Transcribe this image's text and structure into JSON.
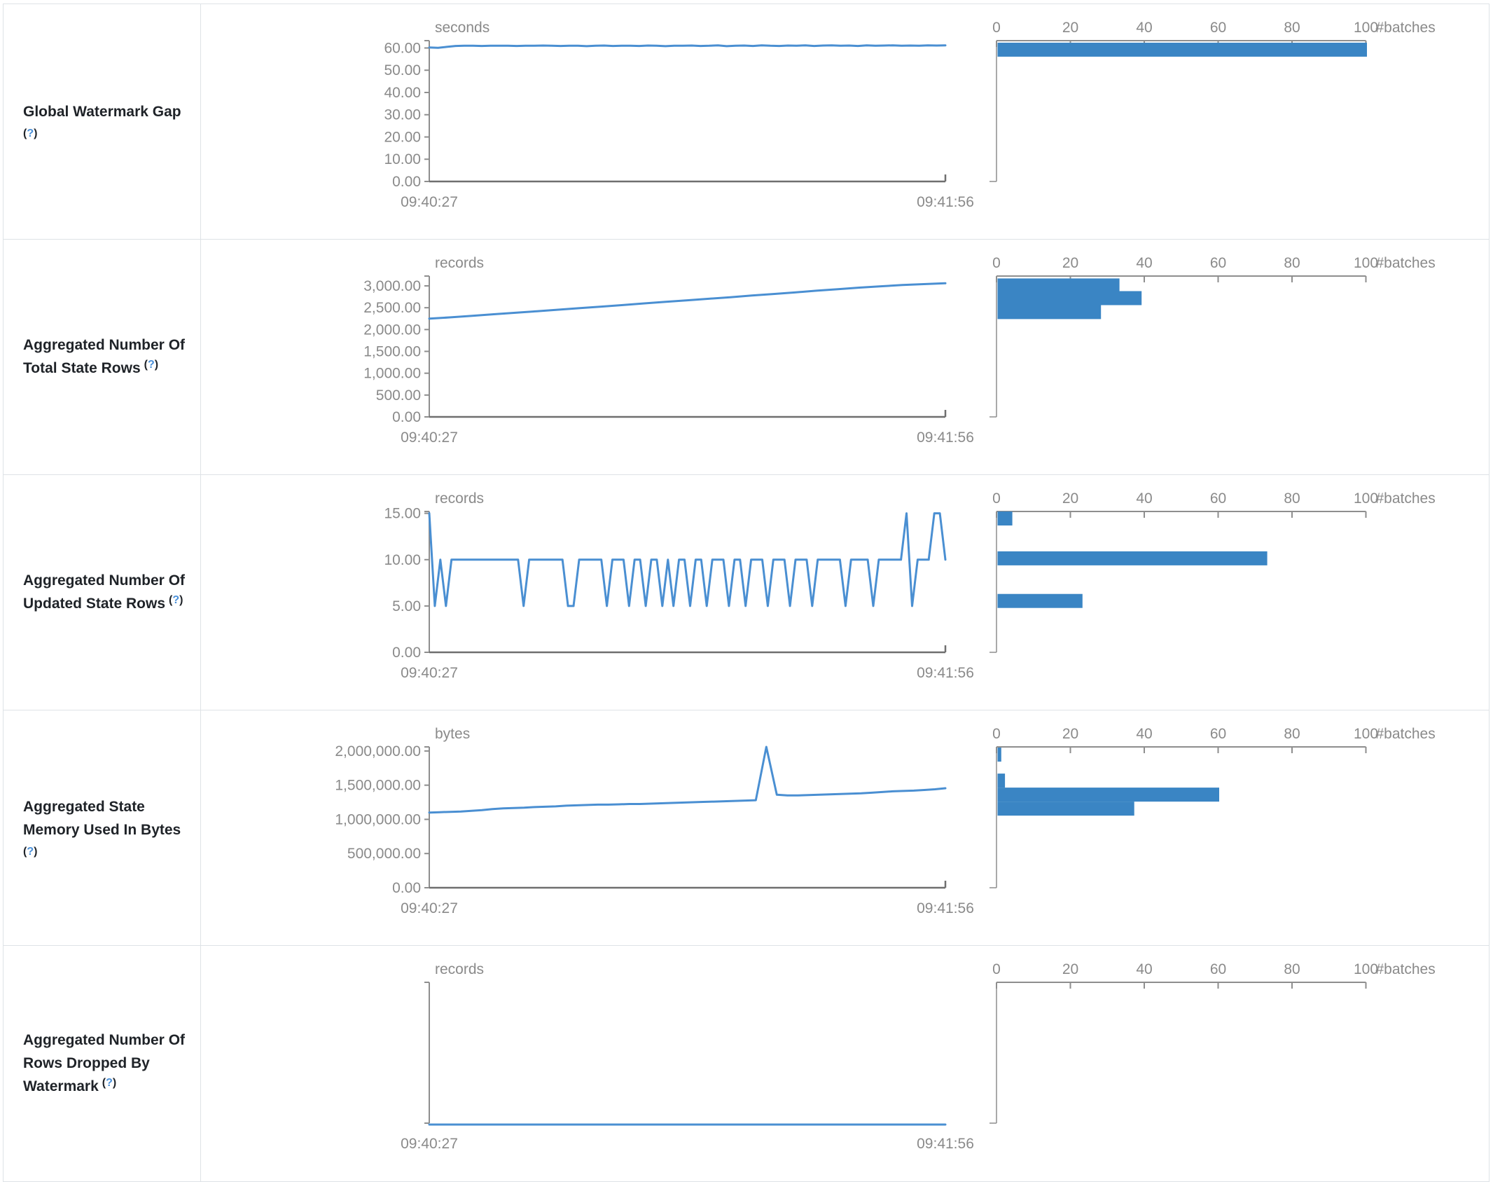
{
  "theme": {
    "line_color": "#4a8fd2",
    "bar_color": "#3a85c4",
    "axis_color": "#8e8e8e",
    "axis_dark_color": "#6f6f6f",
    "label_color": "#8a8a8a",
    "title_color": "#1f2328",
    "help_color": "#4a90d9",
    "border_color": "#dee2e6"
  },
  "table": {
    "rows": [
      {
        "label": {
          "lines": [
            "Global Watermark Gap"
          ],
          "help": "(?)",
          "help_inline": false
        }
      },
      {
        "label": {
          "lines": [
            "Aggregated Number Of",
            "Total State Rows"
          ],
          "help": "(?)",
          "help_inline": true
        }
      },
      {
        "label": {
          "lines": [
            "Aggregated Number Of",
            "Updated State Rows"
          ],
          "help": "(?)",
          "help_inline": true
        }
      },
      {
        "label": {
          "lines": [
            "Aggregated State",
            "Memory Used In Bytes"
          ],
          "help": "(?)",
          "help_inline": false
        }
      },
      {
        "label": {
          "lines": [
            "Aggregated Number Of",
            "Rows Dropped By",
            "Watermark"
          ],
          "help": "(?)",
          "help_inline": true
        }
      }
    ]
  },
  "chart_data": [
    {
      "type": "line",
      "metric": "Global Watermark Gap",
      "unit": "seconds",
      "x_start": "09:40:27",
      "x_end": "09:41:56",
      "ymax": 63.3,
      "show_x_axis": true,
      "y_ticks": [
        {
          "label": "60.00",
          "value": 60
        },
        {
          "label": "50.00",
          "value": 50
        },
        {
          "label": "40.00",
          "value": 40
        },
        {
          "label": "30.00",
          "value": 30
        },
        {
          "label": "20.00",
          "value": 20
        },
        {
          "label": "10.00",
          "value": 10
        },
        {
          "label": "0.00",
          "value": 0
        }
      ],
      "values": [
        60.2,
        60.1,
        60.5,
        60.9,
        61,
        61,
        60.9,
        61,
        61,
        61,
        60.9,
        61,
        61,
        61.1,
        61,
        60.9,
        61,
        61,
        60.8,
        61,
        61.1,
        60.9,
        61,
        61,
        60.9,
        61.1,
        61,
        60.8,
        61,
        61,
        61.1,
        60.9,
        61,
        61.2,
        60.8,
        61,
        61.1,
        60.9,
        61.2,
        61,
        60.9,
        61.1,
        61,
        61.2,
        60.9,
        61.1,
        61.2,
        61,
        61.1,
        60.9,
        61.2,
        61,
        61.1,
        61.2,
        61,
        61.1,
        61,
        61.2,
        61.1,
        61.2
      ],
      "histogram": {
        "type": "bar",
        "xlabel": "#batches",
        "x_ticks": [
          0,
          20,
          40,
          60,
          80,
          100
        ],
        "bars": [
          {
            "value": 62.4,
            "count": 100
          }
        ]
      }
    },
    {
      "type": "line",
      "metric": "Aggregated Number Of Total State Rows",
      "unit": "records",
      "x_start": "09:40:27",
      "x_end": "09:41:56",
      "ymax": 3225,
      "show_x_axis": true,
      "y_ticks": [
        {
          "label": "3,000.00",
          "value": 3000
        },
        {
          "label": "2,500.00",
          "value": 2500
        },
        {
          "label": "2,000.00",
          "value": 2000
        },
        {
          "label": "1,500.00",
          "value": 1500
        },
        {
          "label": "1,000.00",
          "value": 1000
        },
        {
          "label": "500.00",
          "value": 500
        },
        {
          "label": "0.00",
          "value": 0
        }
      ],
      "values": [
        2250,
        2280,
        2315,
        2350,
        2385,
        2420,
        2455,
        2490,
        2525,
        2560,
        2600,
        2635,
        2670,
        2705,
        2740,
        2780,
        2815,
        2850,
        2890,
        2925,
        2960,
        2990,
        3020,
        3040,
        3060
      ],
      "histogram": {
        "type": "bar",
        "xlabel": "#batches",
        "x_ticks": [
          0,
          20,
          40,
          60,
          80,
          100
        ],
        "bars": [
          {
            "value": 3170,
            "count": 33
          },
          {
            "value": 2880,
            "count": 39
          },
          {
            "value": 2560,
            "count": 28
          }
        ]
      }
    },
    {
      "type": "line",
      "metric": "Aggregated Number Of Updated State Rows",
      "unit": "records",
      "x_start": "09:40:27",
      "x_end": "09:41:56",
      "ymax": 15.2,
      "show_x_axis": true,
      "y_ticks": [
        {
          "label": "15.00",
          "value": 15
        },
        {
          "label": "10.00",
          "value": 10
        },
        {
          "label": "5.00",
          "value": 5
        },
        {
          "label": "0.00",
          "value": 0
        }
      ],
      "values": [
        15,
        5,
        10,
        5,
        10,
        10,
        10,
        10,
        10,
        10,
        10,
        10,
        10,
        10,
        10,
        10,
        10,
        5,
        10,
        10,
        10,
        10,
        10,
        10,
        10,
        5,
        5,
        10,
        10,
        10,
        10,
        10,
        5,
        10,
        10,
        10,
        5,
        10,
        10,
        5,
        10,
        10,
        5,
        10,
        5,
        10,
        10,
        5,
        10,
        10,
        5,
        10,
        10,
        10,
        5,
        10,
        10,
        5,
        10,
        10,
        10,
        5,
        10,
        10,
        10,
        5,
        10,
        10,
        10,
        5,
        10,
        10,
        10,
        10,
        10,
        5,
        10,
        10,
        10,
        10,
        5,
        10,
        10,
        10,
        10,
        10,
        15,
        5,
        10,
        10,
        10,
        15,
        15,
        10
      ],
      "histogram": {
        "type": "bar",
        "xlabel": "#batches",
        "x_ticks": [
          0,
          20,
          40,
          60,
          80,
          100
        ],
        "bars": [
          {
            "value": 15.2,
            "count": 4
          },
          {
            "value": 10.9,
            "count": 73
          },
          {
            "value": 6.3,
            "count": 23
          }
        ]
      }
    },
    {
      "type": "line",
      "metric": "Aggregated State Memory Used In Bytes",
      "unit": "bytes",
      "x_start": "09:40:27",
      "x_end": "09:41:56",
      "ymax": 2060000,
      "show_x_axis": true,
      "y_ticks": [
        {
          "label": "2,000,000.00",
          "value": 2000000
        },
        {
          "label": "1,500,000.00",
          "value": 1500000
        },
        {
          "label": "1,000,000.00",
          "value": 1000000
        },
        {
          "label": "500,000.00",
          "value": 500000
        },
        {
          "label": "0.00",
          "value": 0
        }
      ],
      "values": [
        1100000,
        1105000,
        1110000,
        1115000,
        1125000,
        1135000,
        1150000,
        1160000,
        1165000,
        1170000,
        1180000,
        1185000,
        1190000,
        1200000,
        1205000,
        1210000,
        1215000,
        1215000,
        1220000,
        1225000,
        1225000,
        1230000,
        1235000,
        1240000,
        1245000,
        1250000,
        1255000,
        1260000,
        1265000,
        1270000,
        1275000,
        1280000,
        2060000,
        1360000,
        1350000,
        1350000,
        1355000,
        1360000,
        1365000,
        1370000,
        1375000,
        1380000,
        1390000,
        1400000,
        1410000,
        1415000,
        1420000,
        1430000,
        1440000,
        1455000
      ],
      "histogram": {
        "type": "bar",
        "xlabel": "#batches",
        "x_ticks": [
          0,
          20,
          40,
          60,
          80,
          100
        ],
        "bars": [
          {
            "value": 2050000,
            "count": 1
          },
          {
            "value": 1670000,
            "count": 2
          },
          {
            "value": 1465000,
            "count": 60
          },
          {
            "value": 1260000,
            "count": 37
          }
        ]
      }
    },
    {
      "type": "line",
      "metric": "Aggregated Number Of Rows Dropped By Watermark",
      "unit": "records",
      "x_start": "09:40:27",
      "x_end": "09:41:56",
      "ymax": 1,
      "show_x_axis": false,
      "y_ticks": [],
      "values": [
        0,
        0
      ],
      "histogram": {
        "type": "bar",
        "xlabel": "#batches",
        "x_ticks": [
          0,
          20,
          40,
          60,
          80,
          100
        ],
        "bars": []
      }
    }
  ]
}
